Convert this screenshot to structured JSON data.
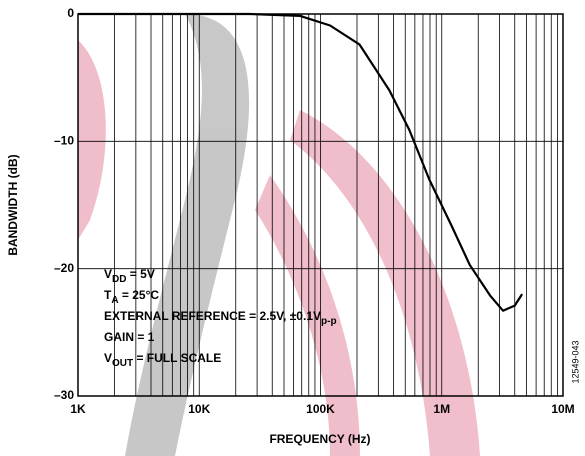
{
  "chart_data": {
    "type": "line",
    "xlabel": "FREQUENCY (Hz)",
    "ylabel": "BANDWIDTH (dB)",
    "xlog": true,
    "xlim": [
      1000,
      10000000
    ],
    "ylim": [
      -30,
      0
    ],
    "xticks": [
      {
        "value": 1000,
        "label": "1K"
      },
      {
        "value": 10000,
        "label": "10K"
      },
      {
        "value": 100000,
        "label": "100K"
      },
      {
        "value": 1000000,
        "label": "1M"
      },
      {
        "value": 10000000,
        "label": "10M"
      }
    ],
    "x_minor_ticks": [
      2000,
      3000,
      4000,
      5000,
      6000,
      7000,
      8000,
      9000,
      20000,
      30000,
      40000,
      50000,
      60000,
      70000,
      80000,
      90000,
      200000,
      300000,
      400000,
      500000,
      600000,
      700000,
      800000,
      900000,
      2000000,
      3000000,
      4000000,
      5000000,
      6000000,
      7000000,
      8000000,
      9000000
    ],
    "yticks": [
      0,
      {
        "value": -10,
        "label": "–10"
      },
      {
        "value": -20,
        "label": "–20"
      },
      {
        "value": -30,
        "label": "–30"
      }
    ],
    "grid": true,
    "series": [
      {
        "color": "#000000",
        "x": [
          1000,
          26000,
          68000,
          120000,
          210000,
          370000,
          540000,
          790000,
          1200000,
          1700000,
          2500000,
          3200000,
          4000000,
          4600000
        ],
        "values": [
          0,
          0,
          -0.15,
          -0.9,
          -2.4,
          -6,
          -9.1,
          -13,
          -16.6,
          -19.7,
          -22.1,
          -23.3,
          -22.9,
          -22
        ]
      }
    ],
    "annotation_lines": [
      [
        "V",
        "DD",
        " = 5V"
      ],
      [
        "T",
        "A",
        " = 25°C"
      ],
      [
        "EXTERNAL REFERENCE = 2.5V, ±0.1V",
        "p-p"
      ],
      [
        "GAIN = 1"
      ],
      [
        "V",
        "OUT",
        " = FULL SCALE"
      ]
    ],
    "figure_code": "12549-043"
  }
}
